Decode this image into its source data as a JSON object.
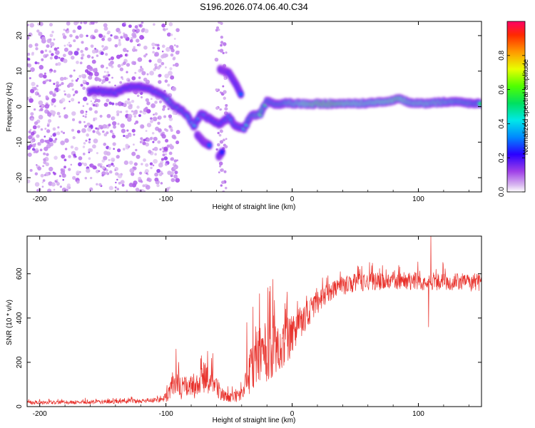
{
  "chart_data": [
    {
      "type": "heatmap",
      "title": "S196.2026.074.06.40.C34",
      "xlabel": "Height of straight line (km)",
      "ylabel": "Frequency (Hz)",
      "xlim": [
        -210,
        150
      ],
      "ylim": [
        -24,
        24
      ],
      "xticks": [
        -200,
        -100,
        0,
        100
      ],
      "yticks": [
        -20,
        -10,
        0,
        10,
        20
      ],
      "colorbar": {
        "label": "Normalized spectral amplitude",
        "range": [
          0,
          1
        ],
        "ticks": [
          0.0,
          0.2,
          0.4,
          0.6,
          0.8
        ],
        "tick_labels": [
          "0.0",
          "0.2",
          "0.4",
          "0.6",
          "0.8"
        ],
        "colormap": "gist_rainbow_r"
      },
      "ridge_path": [
        {
          "x": -160,
          "y": 4.3,
          "a": 0.3
        },
        {
          "x": -150,
          "y": 4.3,
          "a": 0.35
        },
        {
          "x": -140,
          "y": 4.0,
          "a": 0.35
        },
        {
          "x": -130,
          "y": 5.5,
          "a": 0.3
        },
        {
          "x": -118,
          "y": 5.5,
          "a": 0.35
        },
        {
          "x": -110,
          "y": 4.5,
          "a": 0.4
        },
        {
          "x": -100,
          "y": 2.5,
          "a": 0.45
        },
        {
          "x": -95,
          "y": 0.5,
          "a": 0.5
        },
        {
          "x": -88,
          "y": -1.0,
          "a": 0.45
        },
        {
          "x": -82,
          "y": -3.0,
          "a": 0.45
        },
        {
          "x": -78,
          "y": -5.5,
          "a": 0.4
        },
        {
          "x": -72,
          "y": -2.0,
          "a": 0.4
        },
        {
          "x": -65,
          "y": -3.5,
          "a": 0.4
        },
        {
          "x": -58,
          "y": -5.0,
          "a": 0.35
        },
        {
          "x": -50,
          "y": -3.0,
          "a": 0.35
        },
        {
          "x": -45,
          "y": -5.5,
          "a": 0.4
        },
        {
          "x": -38,
          "y": -6.0,
          "a": 0.45
        },
        {
          "x": -32,
          "y": -2.5,
          "a": 0.55
        },
        {
          "x": -25,
          "y": -2.0,
          "a": 0.6
        },
        {
          "x": -20,
          "y": 1.5,
          "a": 0.55
        },
        {
          "x": -12,
          "y": 0.5,
          "a": 0.55
        },
        {
          "x": -5,
          "y": 1.0,
          "a": 0.6
        },
        {
          "x": 5,
          "y": 0.8,
          "a": 0.75
        },
        {
          "x": 20,
          "y": 0.8,
          "a": 0.95
        },
        {
          "x": 40,
          "y": 0.8,
          "a": 0.9
        },
        {
          "x": 60,
          "y": 1.0,
          "a": 0.75
        },
        {
          "x": 75,
          "y": 1.4,
          "a": 0.85
        },
        {
          "x": 85,
          "y": 2.2,
          "a": 0.9
        },
        {
          "x": 95,
          "y": 1.0,
          "a": 0.7
        },
        {
          "x": 105,
          "y": 0.8,
          "a": 0.75
        },
        {
          "x": 115,
          "y": 1.2,
          "a": 0.7
        },
        {
          "x": 125,
          "y": 1.4,
          "a": 0.65
        },
        {
          "x": 140,
          "y": 1.0,
          "a": 0.6
        },
        {
          "x": 150,
          "y": 1.0,
          "a": 0.55
        }
      ],
      "branches": [
        {
          "points": [
            [
              -57,
              10.5
            ],
            [
              -50,
              9.5
            ],
            [
              -44,
              6.0
            ],
            [
              -40,
              3.0
            ]
          ],
          "a": 0.3
        },
        {
          "points": [
            [
              -75,
              -8.0
            ],
            [
              -70,
              -10.0
            ],
            [
              -65,
              -11.0
            ]
          ],
          "a": 0.3
        },
        {
          "points": [
            [
              -58,
              -14.0
            ],
            [
              -55,
              -12.5
            ]
          ],
          "a": 0.25
        }
      ]
    },
    {
      "type": "line",
      "xlabel": "Height of straight line (km)",
      "ylabel": "SNR (10 * v/v)",
      "xlim": [
        -210,
        150
      ],
      "ylim": [
        0,
        770
      ],
      "xticks": [
        -200,
        -100,
        0,
        100
      ],
      "yticks": [
        0,
        200,
        400,
        600
      ],
      "series_color": "#e8302a",
      "profile": [
        {
          "x": -210,
          "y": 18,
          "n": 8
        },
        {
          "x": -160,
          "y": 20,
          "n": 9
        },
        {
          "x": -120,
          "y": 25,
          "n": 10
        },
        {
          "x": -105,
          "y": 30,
          "n": 12
        },
        {
          "x": -100,
          "y": 45,
          "n": 25
        },
        {
          "x": -92,
          "y": 110,
          "n": 60
        },
        {
          "x": -88,
          "y": 75,
          "n": 45
        },
        {
          "x": -82,
          "y": 100,
          "n": 55
        },
        {
          "x": -76,
          "y": 80,
          "n": 50
        },
        {
          "x": -70,
          "y": 130,
          "n": 70
        },
        {
          "x": -64,
          "y": 120,
          "n": 60
        },
        {
          "x": -58,
          "y": 70,
          "n": 40
        },
        {
          "x": -50,
          "y": 40,
          "n": 20
        },
        {
          "x": -40,
          "y": 50,
          "n": 30
        },
        {
          "x": -34,
          "y": 140,
          "n": 90
        },
        {
          "x": -28,
          "y": 220,
          "n": 130
        },
        {
          "x": -22,
          "y": 250,
          "n": 140
        },
        {
          "x": -15,
          "y": 270,
          "n": 150
        },
        {
          "x": -8,
          "y": 280,
          "n": 110
        },
        {
          "x": 0,
          "y": 320,
          "n": 90
        },
        {
          "x": 10,
          "y": 400,
          "n": 70
        },
        {
          "x": 22,
          "y": 480,
          "n": 55
        },
        {
          "x": 35,
          "y": 540,
          "n": 45
        },
        {
          "x": 50,
          "y": 560,
          "n": 40
        },
        {
          "x": 80,
          "y": 570,
          "n": 40
        },
        {
          "x": 110,
          "y": 565,
          "n": 40
        },
        {
          "x": 150,
          "y": 560,
          "n": 40
        }
      ],
      "spikes": [
        {
          "x": -92,
          "y": 260
        },
        {
          "x": -90,
          "y": 200
        },
        {
          "x": -72,
          "y": 230
        },
        {
          "x": -67,
          "y": 250
        },
        {
          "x": -63,
          "y": 240
        },
        {
          "x": -36,
          "y": 380
        },
        {
          "x": -31,
          "y": 450
        },
        {
          "x": -26,
          "y": 510
        },
        {
          "x": -18,
          "y": 520
        },
        {
          "x": -14,
          "y": 480
        },
        {
          "x": -5,
          "y": 440
        },
        {
          "x": 108,
          "y": 360,
          "down": true
        },
        {
          "x": 110,
          "y": 770
        }
      ]
    }
  ]
}
